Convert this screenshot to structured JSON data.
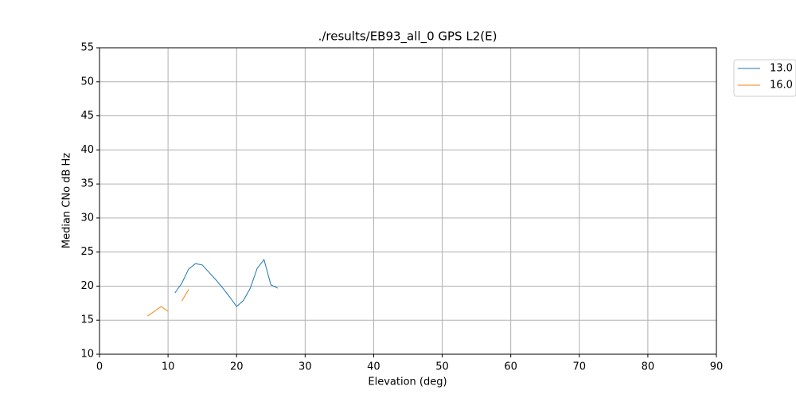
{
  "chart_data": {
    "type": "line",
    "title": "./results/EB93_all_0 GPS L2(E)",
    "x_label": "Elevation (deg)",
    "y_label": "Median CNo dB Hz",
    "x": [
      7,
      8,
      9,
      10,
      11,
      12,
      13,
      14,
      15,
      16,
      17,
      18,
      19,
      20,
      21,
      22,
      23,
      24,
      25,
      26
    ],
    "series": [
      {
        "name": "13.0",
        "color": "#1f77b4",
        "values": [
          null,
          null,
          null,
          null,
          19.0,
          20.4,
          22.5,
          23.3,
          23.1,
          22.0,
          20.9,
          19.7,
          18.4,
          17.0,
          17.9,
          19.7,
          22.6,
          23.9,
          20.2,
          19.7
        ]
      },
      {
        "name": "16.0",
        "color": "#ff7f0e",
        "values": [
          15.6,
          16.3,
          17.0,
          16.3,
          null,
          17.8,
          19.5,
          null,
          null,
          null,
          null,
          null,
          null,
          null,
          null,
          null,
          null,
          null,
          null,
          null
        ]
      }
    ],
    "xlim": [
      0,
      90
    ],
    "xticks": [
      0,
      10,
      20,
      30,
      40,
      50,
      60,
      70,
      80,
      90
    ],
    "ylim": [
      10,
      55
    ],
    "yticks": [
      10,
      15,
      20,
      25,
      30,
      35,
      40,
      45,
      50,
      55
    ],
    "grid": true,
    "legend": "outside-upper-right"
  }
}
